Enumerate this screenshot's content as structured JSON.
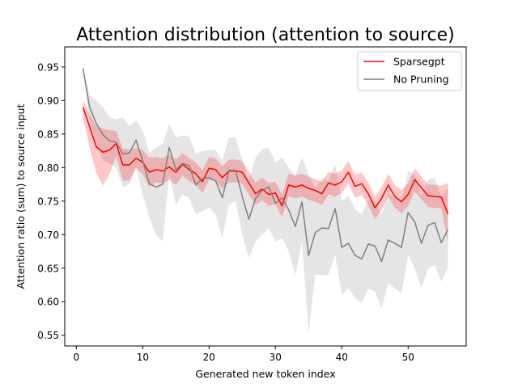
{
  "chart_data": {
    "type": "line",
    "title": "Attention distribution (attention to source)",
    "xlabel": "Generated new token index",
    "ylabel": "Attention ratio (sum) to source input",
    "xlim": [
      -1.75,
      58.75
    ],
    "ylim": [
      0.534,
      0.98
    ],
    "x_ticks": [
      0,
      10,
      20,
      30,
      40,
      50
    ],
    "y_ticks": [
      0.55,
      0.6,
      0.65,
      0.7,
      0.75,
      0.8,
      0.85,
      0.9,
      0.95
    ],
    "y_tick_labels": [
      "0.55",
      "0.60",
      "0.65",
      "0.70",
      "0.75",
      "0.80",
      "0.85",
      "0.90",
      "0.95"
    ],
    "grid": false,
    "legend_position": "top-right",
    "x": [
      1,
      2,
      3,
      4,
      5,
      6,
      7,
      8,
      9,
      10,
      11,
      12,
      13,
      14,
      15,
      16,
      17,
      18,
      19,
      20,
      21,
      22,
      23,
      24,
      25,
      26,
      27,
      28,
      29,
      30,
      31,
      32,
      33,
      34,
      35,
      36,
      37,
      38,
      39,
      40,
      41,
      42,
      43,
      44,
      45,
      46,
      47,
      48,
      49,
      50,
      51,
      52,
      53,
      54,
      55,
      56
    ],
    "series": [
      {
        "name": "Sparsegpt",
        "color": "#ff0000",
        "band_color": "#ff0000",
        "values": [
          0.89,
          0.861,
          0.831,
          0.823,
          0.826,
          0.836,
          0.804,
          0.804,
          0.814,
          0.808,
          0.793,
          0.797,
          0.795,
          0.801,
          0.793,
          0.805,
          0.797,
          0.791,
          0.779,
          0.799,
          0.797,
          0.785,
          0.795,
          0.795,
          0.793,
          0.777,
          0.761,
          0.768,
          0.76,
          0.762,
          0.743,
          0.774,
          0.771,
          0.774,
          0.769,
          0.766,
          0.761,
          0.777,
          0.774,
          0.779,
          0.793,
          0.772,
          0.776,
          0.761,
          0.74,
          0.754,
          0.774,
          0.757,
          0.749,
          0.76,
          0.782,
          0.77,
          0.758,
          0.757,
          0.756,
          0.731
        ],
        "lower": [
          0.875,
          0.83,
          0.792,
          0.773,
          0.79,
          0.818,
          0.78,
          0.781,
          0.8,
          0.79,
          0.771,
          0.778,
          0.776,
          0.782,
          0.774,
          0.788,
          0.78,
          0.774,
          0.762,
          0.782,
          0.78,
          0.768,
          0.778,
          0.778,
          0.776,
          0.76,
          0.744,
          0.751,
          0.743,
          0.745,
          0.726,
          0.757,
          0.754,
          0.757,
          0.752,
          0.749,
          0.744,
          0.76,
          0.757,
          0.762,
          0.776,
          0.755,
          0.759,
          0.744,
          0.723,
          0.737,
          0.757,
          0.74,
          0.732,
          0.743,
          0.765,
          0.753,
          0.741,
          0.74,
          0.739,
          0.688
        ],
        "upper": [
          0.9,
          0.88,
          0.862,
          0.858,
          0.856,
          0.855,
          0.828,
          0.827,
          0.829,
          0.826,
          0.815,
          0.816,
          0.814,
          0.82,
          0.812,
          0.822,
          0.814,
          0.808,
          0.796,
          0.816,
          0.814,
          0.802,
          0.812,
          0.812,
          0.81,
          0.794,
          0.778,
          0.785,
          0.777,
          0.779,
          0.76,
          0.791,
          0.788,
          0.791,
          0.786,
          0.783,
          0.778,
          0.794,
          0.791,
          0.796,
          0.81,
          0.789,
          0.793,
          0.778,
          0.757,
          0.771,
          0.791,
          0.774,
          0.766,
          0.777,
          0.799,
          0.787,
          0.775,
          0.774,
          0.773,
          0.777
        ]
      },
      {
        "name": "No Pruning",
        "color": "#808080",
        "band_color": "#a0a0a0",
        "values": [
          0.948,
          0.89,
          0.866,
          0.849,
          0.84,
          0.838,
          0.82,
          0.822,
          0.841,
          0.81,
          0.776,
          0.771,
          0.775,
          0.83,
          0.797,
          0.806,
          0.803,
          0.774,
          0.784,
          0.785,
          0.78,
          0.755,
          0.796,
          0.796,
          0.757,
          0.723,
          0.754,
          0.766,
          0.771,
          0.747,
          0.755,
          0.737,
          0.712,
          0.749,
          0.669,
          0.703,
          0.71,
          0.709,
          0.739,
          0.681,
          0.687,
          0.669,
          0.664,
          0.686,
          0.683,
          0.66,
          0.692,
          0.687,
          0.681,
          0.733,
          0.719,
          0.687,
          0.714,
          0.718,
          0.688,
          0.708
        ],
        "lower": [
          0.945,
          0.87,
          0.835,
          0.81,
          0.806,
          0.8,
          0.77,
          0.775,
          0.8,
          0.76,
          0.725,
          0.7,
          0.69,
          0.79,
          0.745,
          0.76,
          0.755,
          0.73,
          0.735,
          0.74,
          0.73,
          0.695,
          0.745,
          0.75,
          0.7,
          0.665,
          0.69,
          0.7,
          0.71,
          0.69,
          0.695,
          0.675,
          0.64,
          0.69,
          0.553,
          0.64,
          0.64,
          0.64,
          0.67,
          0.61,
          0.62,
          0.605,
          0.598,
          0.62,
          0.615,
          0.59,
          0.628,
          0.62,
          0.612,
          0.67,
          0.65,
          0.62,
          0.65,
          0.655,
          0.63,
          0.65
        ],
        "upper": [
          0.95,
          0.908,
          0.9,
          0.89,
          0.875,
          0.872,
          0.875,
          0.862,
          0.87,
          0.855,
          0.822,
          0.83,
          0.835,
          0.865,
          0.845,
          0.848,
          0.846,
          0.82,
          0.825,
          0.826,
          0.826,
          0.81,
          0.845,
          0.845,
          0.811,
          0.78,
          0.815,
          0.827,
          0.83,
          0.808,
          0.815,
          0.8,
          0.788,
          0.815,
          0.79,
          0.77,
          0.785,
          0.78,
          0.805,
          0.75,
          0.758,
          0.738,
          0.73,
          0.752,
          0.75,
          0.73,
          0.762,
          0.755,
          0.75,
          0.795,
          0.79,
          0.757,
          0.782,
          0.785,
          0.755,
          0.77
        ]
      }
    ]
  }
}
